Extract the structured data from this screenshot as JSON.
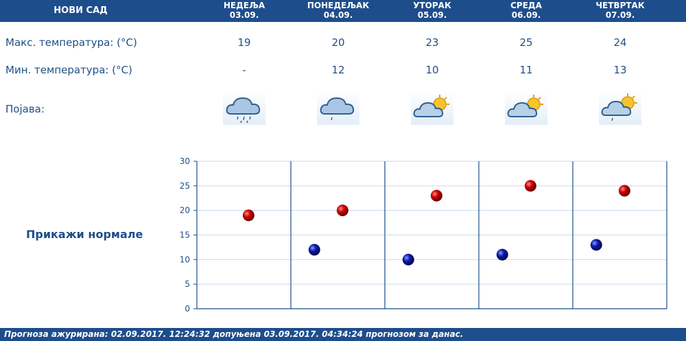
{
  "header": {
    "city": "НОВИ САД"
  },
  "days": [
    {
      "name": "НЕДЕЉА",
      "date": "03.09.",
      "max": "19",
      "min": "-",
      "icon": "rain-cloud-icon"
    },
    {
      "name": "ПОНЕДЕЉАК",
      "date": "04.09.",
      "max": "20",
      "min": "12",
      "icon": "light-rain-cloud-icon"
    },
    {
      "name": "УТОРАК",
      "date": "05.09.",
      "max": "23",
      "min": "10",
      "icon": "partly-cloudy-icon"
    },
    {
      "name": "СРЕДА",
      "date": "06.09.",
      "max": "25",
      "min": "11",
      "icon": "partly-cloudy-icon"
    },
    {
      "name": "ЧЕТВРТАК",
      "date": "07.09.",
      "max": "24",
      "min": "13",
      "icon": "partly-cloudy-rain-icon"
    }
  ],
  "labels": {
    "max": "Макс. температура: (°C)",
    "min": "Мин. температура: (°C)",
    "phenomenon": "Појава:",
    "normals": "Прикажи нормале"
  },
  "footer": {
    "text": "Прогноза ажурирана:  02.09.2017. 12:24:32 допуњена 03.09.2017. 04:34:24 прогнозом за данас."
  },
  "colors": {
    "header_bg": "#1e4d8c",
    "max_marker": "#cc0000",
    "min_marker": "#0a1aa8"
  },
  "chart_data": {
    "type": "scatter",
    "categories": [
      "03.09.",
      "04.09.",
      "05.09.",
      "06.09.",
      "07.09."
    ],
    "series": [
      {
        "values": [
          19,
          20,
          23,
          25,
          24
        ]
      },
      {
        "values": [
          null,
          12,
          10,
          11,
          13
        ]
      }
    ],
    "ylim": [
      0,
      30
    ],
    "yticks": [
      0,
      5,
      10,
      15,
      20,
      25,
      30
    ],
    "grid": true
  }
}
